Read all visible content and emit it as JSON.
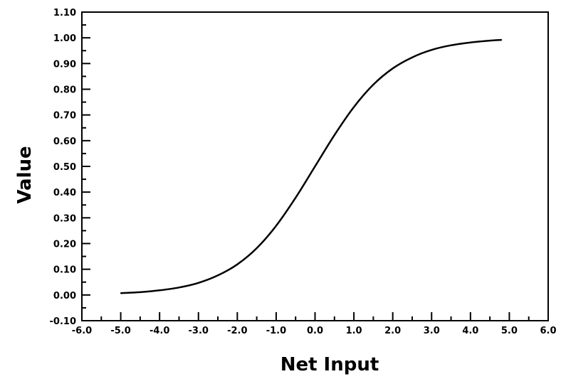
{
  "chart_data": {
    "type": "line",
    "title": "",
    "xlabel": "Net Input",
    "ylabel": "Value",
    "xlim": [
      -6.0,
      6.0
    ],
    "ylim": [
      -0.1,
      1.1
    ],
    "x_ticks": [
      -6.0,
      -5.0,
      -4.0,
      -3.0,
      -2.0,
      -1.0,
      0.0,
      1.0,
      2.0,
      3.0,
      4.0,
      5.0,
      6.0
    ],
    "x_tick_labels": [
      "-6.0",
      "-5.0",
      "-4.0",
      "-3.0",
      "-2.0",
      "-1.0",
      "0.0",
      "1.0",
      "2.0",
      "3.0",
      "4.0",
      "5.0",
      "6.0"
    ],
    "y_ticks": [
      -0.1,
      0.0,
      0.1,
      0.2,
      0.3,
      0.4,
      0.5,
      0.6,
      0.7,
      0.8,
      0.9,
      1.0,
      1.1
    ],
    "y_tick_labels": [
      "-0.10",
      "0.00",
      "0.10",
      "0.20",
      "0.30",
      "0.40",
      "0.50",
      "0.60",
      "0.70",
      "0.80",
      "0.90",
      "1.00",
      "1.10"
    ],
    "grid": false,
    "series": [
      {
        "color": "#000000",
        "x": [
          -5.0,
          -4.5,
          -4.0,
          -3.5,
          -3.0,
          -2.5,
          -2.0,
          -1.5,
          -1.0,
          -0.5,
          0.0,
          0.5,
          1.0,
          1.5,
          2.0,
          2.5,
          3.0,
          3.5,
          4.0,
          4.5,
          4.8
        ],
        "y": [
          0.007,
          0.011,
          0.018,
          0.029,
          0.047,
          0.076,
          0.119,
          0.182,
          0.269,
          0.378,
          0.5,
          0.622,
          0.731,
          0.818,
          0.881,
          0.924,
          0.953,
          0.971,
          0.982,
          0.989,
          0.992
        ]
      }
    ]
  }
}
